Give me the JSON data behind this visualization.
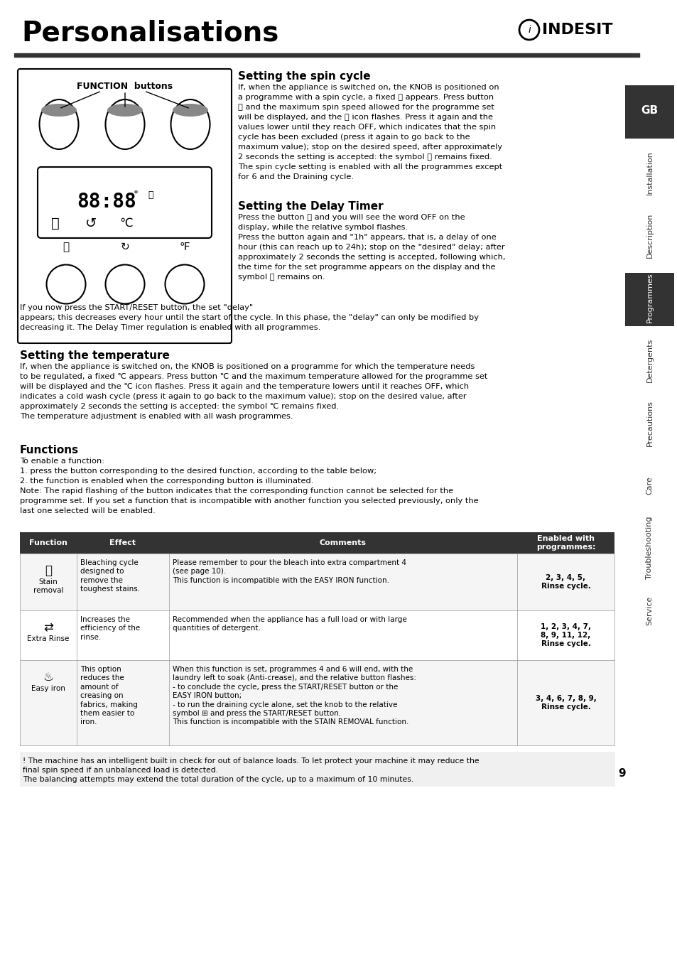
{
  "title": "Personalisations",
  "bg_color": "#ffffff",
  "text_color": "#000000",
  "sidebar_items": [
    "GB",
    "Installation",
    "Description",
    "Programmes",
    "Detergents",
    "Precautions",
    "Care",
    "Troubleshooting",
    "Service"
  ],
  "sidebar_highlight": [
    "GB",
    "Programmes"
  ],
  "page_number": "9",
  "section1_title": "Setting the spin cycle",
  "section1_body": "If, when the appliance is switched on, the KNOB is positioned on\na programme with a spin cycle, a fixed ⓢ appears. Press button\nⓢ and the maximum spin speed allowed for the programme set\nwill be displayed, and the ⓢ icon flashes. Press it again and the\nvalues lower until they reach OFF, which indicates that the spin\ncycle has been excluded (press it again to go back to the\nmaximum value); stop on the desired speed, after approximately\n2 seconds the setting is accepted: the symbol ⓢ remains fixed.\nThe spin cycle setting is enabled with all the programmes except\nfor 6 and the Draining cycle.",
  "section2_title": "Setting the Delay Timer",
  "section2_body": "Press the button ⌛ and you will see the word OFF on the\ndisplay, while the relative symbol flashes.\nPress the button again and \"1h\" appears, that is, a delay of one\nhour (this can reach up to 24h); stop on the \"desired\" delay; after\napproximately 2 seconds the setting is accepted, following which,\nthe time for the set programme appears on the display and the\nsymbol ⌛ remains on.\nIf you now press the START/RESET button, the set \"delay\"\nappears; this decreases every hour until the start of the cycle. In this phase, the \"delay\" can only be modified by\ndecreasing it. The Delay Timer regulation is enabled with all programmes.",
  "section3_title": "Setting the temperature",
  "section3_body": "If, when the appliance is switched on, the KNOB is positioned on a programme for which the temperature needs\nto be regulated, a fixed ℃ appears. Press button ℃ and the maximum temperature allowed for the programme set\nwill be displayed and the ℃ icon flashes. Press it again and the temperature lowers until it reaches OFF, which\nindicates a cold wash cycle (press it again to go back to the maximum value); stop on the desired value, after\napproximately 2 seconds the setting is accepted: the symbol ℃ remains fixed.\nThe temperature adjustment is enabled with all wash programmes.",
  "section4_title": "Functions",
  "section4_body": "To enable a function:\n1. press the button corresponding to the desired function, according to the table below;\n2. the function is enabled when the corresponding button is illuminated.\nNote: The rapid flashing of the button indicates that the corresponding function cannot be selected for the\nprogramme set. If you set a function that is incompatible with another function you selected previously, only the\nlast one selected will be enabled.",
  "table_headers": [
    "Function",
    "Effect",
    "Comments",
    "Enabled with\nprogrammes:"
  ],
  "table_row1": {
    "function_name": "Stain\nremoval",
    "effect": "Bleaching cycle\ndesigned to\nremove the\ntoughest stains.",
    "comments": "Please remember to pour the bleach into extra compartment 4\n(see page 10).\nThis function is incompatible with the EASY IRON function.",
    "enabled": "2, 3, 4, 5,\nRinse cycle."
  },
  "table_row2": {
    "function_name": "Extra Rinse",
    "effect": "Increases the\nefficiency of the\nrinse.",
    "comments": "Recommended when the appliance has a full load or with large\nquantities of detergent.",
    "enabled": "1, 2, 3, 4, 7,\n8, 9, 11, 12,\nRinse cycle."
  },
  "table_row3": {
    "function_name": "Easy iron",
    "effect": "This option\nreduces the\namount of\ncreasing on\nfabrics, making\nthem easier to\niron.",
    "comments": "When this function is set, programmes 4 and 6 will end, with the\nlaundry left to soak (Anti-crease), and the relative button flashes:\n- to conclude the cycle, press the START/RESET button or the\nEASY IRON button;\n- to run the draining cycle alone, set the knob to the relative\nsymbol ⊞ and press the START/RESET button.\nThis function is incompatible with the STAIN REMOVAL function.",
    "enabled": "3, 4, 6, 7, 8, 9,\nRinse cycle."
  },
  "footer_text": "! The machine has an intelligent built in check for out of balance loads. To let protect your machine it may reduce the\nfinal spin speed if an unbalanced load is detected.\nThe balancing attempts may extend the total duration of the cycle, up to a maximum of 10 minutes."
}
